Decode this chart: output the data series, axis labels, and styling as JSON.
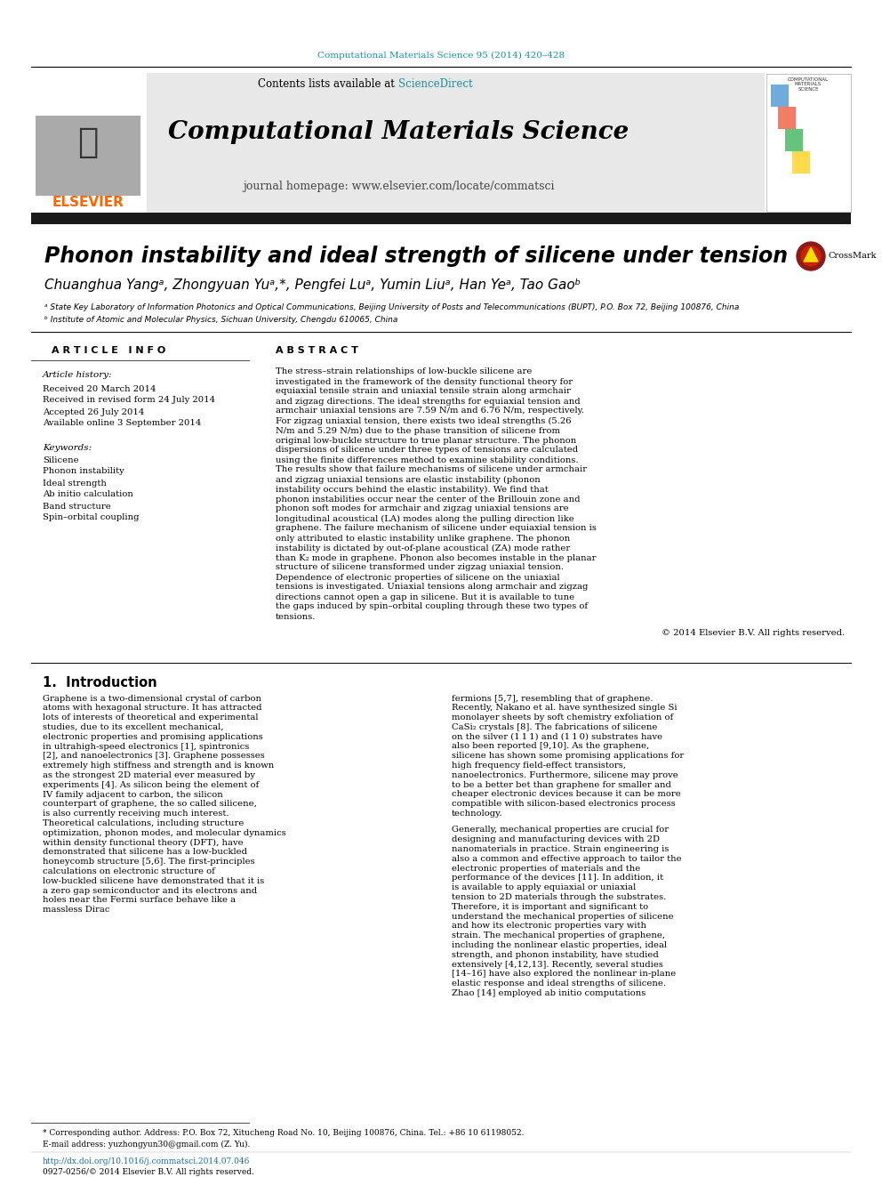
{
  "page_color": "#ffffff",
  "top_citation": "Computational Materials Science 95 (2014) 420–428",
  "top_citation_color": "#1a8fa0",
  "header_bg": "#e8e8e8",
  "contents_text": "Contents lists available at ",
  "sciencedirect_text": "ScienceDirect",
  "sciencedirect_color": "#1a8fa0",
  "journal_title": "Computational Materials Science",
  "journal_homepage": "journal homepage: www.elsevier.com/locate/commatsci",
  "elsevier_color": "#FF6600",
  "black_bar_color": "#1a1a1a",
  "paper_title": "Phonon instability and ideal strength of silicene under tension",
  "authors": "Chuanghua Yangᵃ, Zhongyuan Yuᵃ,*, Pengfei Luᵃ, Yumin Liuᵃ, Han Yeᵃ, Tao Gaoᵇ",
  "affil_a": "ᵃ State Key Laboratory of Information Photonics and Optical Communications, Beijing University of Posts and Telecommunications (BUPT), P.O. Box 72, Beijing 100876, China",
  "affil_b": "ᵇ Institute of Atomic and Molecular Physics, Sichuan University, Chengdu 610065, China",
  "article_info_title": "A R T I C L E   I N F O",
  "abstract_title": "A B S T R A C T",
  "article_history_title": "Article history:",
  "received": "Received 20 March 2014",
  "revised": "Received in revised form 24 July 2014",
  "accepted": "Accepted 26 July 2014",
  "available": "Available online 3 September 2014",
  "keywords_title": "Keywords:",
  "keywords": [
    "Silicene",
    "Phonon instability",
    "Ideal strength",
    "Ab initio calculation",
    "Band structure",
    "Spin–orbital coupling"
  ],
  "abstract_text": "The stress–strain relationships of low-buckle silicene are investigated in the framework of the density functional theory for equiaxial tensile strain and uniaxial tensile strain along armchair and zigzag directions. The ideal strengths for equiaxial tension and armchair uniaxial tensions are 7.59 N/m and 6.76 N/m, respectively. For zigzag uniaxial tension, there exists two ideal strengths (5.26 N/m and 5.29 N/m) due to the phase transition of silicene from original low-buckle structure to true planar structure. The phonon dispersions of silicene under three types of tensions are calculated using the finite differences method to examine stability conditions. The results show that failure mechanisms of silicene under armchair and zigzag uniaxial tensions are elastic instability (phonon instability occurs behind the elastic instability). We find that phonon instabilities occur near the center of the Brillouin zone and phonon soft modes for armchair and zigzag uniaxial tensions are longitudinal acoustical (LA) modes along the pulling direction like graphene. The failure mechanism of silicene under equiaxial tension is only attributed to elastic instability unlike graphene. The phonon instability is dictated by out-of-plane acoustical (ZA) mode rather than K₂ mode in graphene. Phonon also becomes instable in the planar structure of silicene transformed under zigzag uniaxial tension. Dependence of electronic properties of silicene on the uniaxial tensions is investigated. Uniaxial tensions along armchair and zigzag directions cannot open a gap in silicene. But it is available to tune the gaps induced by spin–orbital coupling through these two types of tensions.",
  "copyright": "© 2014 Elsevier B.V. All rights reserved.",
  "intro_title": "1.  Introduction",
  "intro_col1": "Graphene is a two-dimensional crystal of carbon atoms with hexagonal structure. It has attracted lots of interests of theoretical and experimental studies, due to its excellent mechanical, electronic properties and promising applications in ultrahigh-speed electronics [1], spintronics [2], and nanoelectronics [3]. Graphene possesses extremely high stiffness and strength and is known as the strongest 2D material ever measured by experiments [4]. As silicon being the element of IV family adjacent to carbon, the silicon counterpart of graphene, the so called silicene, is also currently receiving much interest. Theoretical calculations, including structure optimization, phonon modes, and molecular dynamics within density functional theory (DFT), have demonstrated that silicene has a low-buckled honeycomb structure [5,6]. The first-principles calculations on electronic structure of low-buckled silicene have demonstrated that it is a zero gap semiconductor and its electrons and holes near the Fermi surface behave like a massless Dirac",
  "intro_col2_p1": "fermions [5,7], resembling that of graphene. Recently, Nakano et al. have synthesized single Si monolayer sheets by soft chemistry exfoliation of CaSi₂ crystals [8]. The fabrications of silicene on the silver (1 1 1) and (1 1 0) substrates have also been reported [9,10]. As the graphene, silicene has shown some promising applications for high frequency field-effect transistors, nanoelectronics. Furthermore, silicene may prove to be a better bet than graphene for smaller and cheaper electronic devices because it can be more compatible with silicon-based electronics process technology.",
  "intro_col2_p2": "Generally, mechanical properties are crucial for designing and manufacturing devices with 2D nanomaterials in practice. Strain engineering is also a common and effective approach to tailor the electronic properties of materials and the performance of the devices [11]. In addition, it is available to apply equiaxial or uniaxial tension to 2D materials through the substrates. Therefore, it is important and significant to understand the mechanical properties of silicene and how its electronic properties vary with strain. The mechanical properties of graphene, including the nonlinear elastic properties, ideal strength, and phonon instability, have studied extensively [4,12,13]. Recently, several studies [14–16] have also explored the nonlinear in-plane elastic response and ideal strengths of silicene. Zhao [14] employed ab initio computations",
  "footnote_star": "* Corresponding author. Address: P.O. Box 72, Xitucheng Road No. 10, Beijing 100876, China. Tel.: +86 10 61198052.",
  "footnote_email": "E-mail address: yuzhongyun30@gmail.com (Z. Yu).",
  "doi_text": "http://dx.doi.org/10.1016/j.commatsci.2014.07.046",
  "doi_color": "#1a6b9e",
  "issn_text": "0927-0256/© 2014 Elsevier B.V. All rights reserved."
}
